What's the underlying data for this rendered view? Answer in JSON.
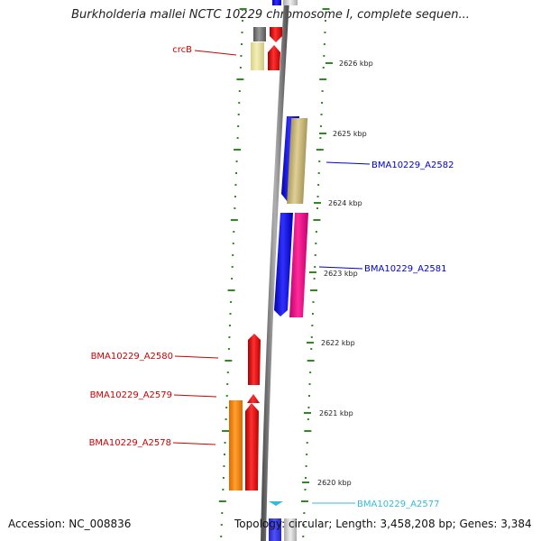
{
  "title": "Burkholderia mallei NCTC 10229 chromosome I, complete sequen...",
  "footer": {
    "accession": "Accession: NC_008836",
    "summary": "Topology: circular; Length: 3,458,208 bp; Genes: 3,384"
  },
  "ticks": [
    "2626 kbp",
    "2625 kbp",
    "2624 kbp",
    "2623 kbp",
    "2622 kbp",
    "2621 kbp",
    "2620 kbp"
  ],
  "genes": [
    {
      "label": "crcB",
      "color": "#cc0000"
    },
    {
      "label": "BMA10229_A2582",
      "color": "#0000cc"
    },
    {
      "label": "BMA10229_A2581",
      "color": "#0000cc"
    },
    {
      "label": "BMA10229_A2580",
      "color": "#cc0000"
    },
    {
      "label": "BMA10229_A2579",
      "color": "#cc0000"
    },
    {
      "label": "BMA10229_A2578",
      "color": "#cc0000"
    },
    {
      "label": "BMA10229_A2577",
      "color": "#33bbdd"
    }
  ],
  "colors": {
    "backbone": "#808080",
    "dots": "#2e8b1e",
    "red": "#ee1111",
    "blue": "#1a1aee",
    "pink": "#ee1188",
    "khaki": "#c8b878",
    "orange": "#ff8800",
    "cyan": "#33bbdd"
  }
}
